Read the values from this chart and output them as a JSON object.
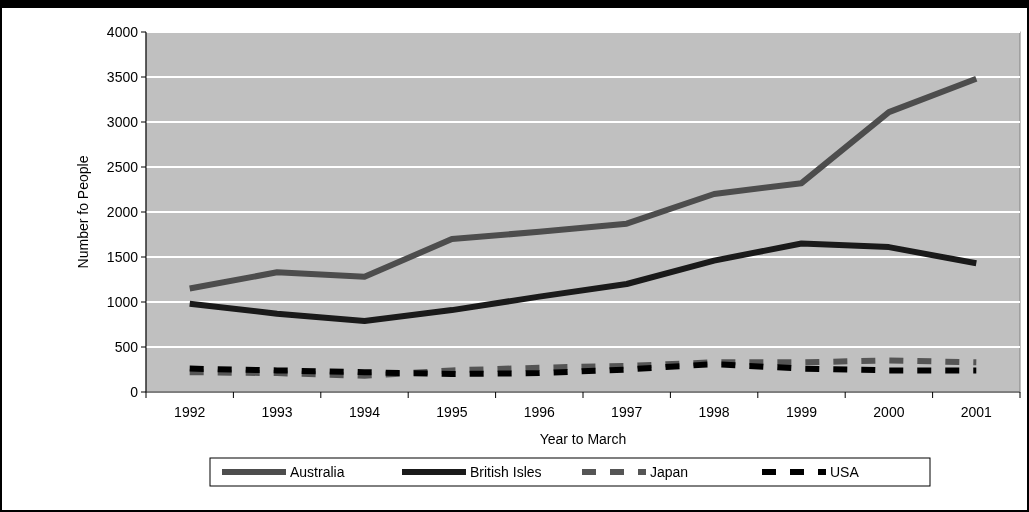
{
  "chart_data": {
    "type": "line",
    "xlabel": "Year to March",
    "ylabel": "Number fo People",
    "categories": [
      "1992",
      "1993",
      "1994",
      "1995",
      "1996",
      "1997",
      "1998",
      "1999",
      "2000",
      "2001"
    ],
    "series": [
      {
        "name": "Australia",
        "color": "#4d4d4d",
        "line_style": "solid",
        "values": [
          1150,
          1330,
          1280,
          1700,
          1780,
          1870,
          2200,
          2320,
          3110,
          3480
        ]
      },
      {
        "name": "British Isles",
        "color": "#1a1a1a",
        "line_style": "solid",
        "values": [
          980,
          870,
          790,
          910,
          1060,
          1200,
          1460,
          1650,
          1610,
          1430
        ]
      },
      {
        "name": "Japan",
        "color": "#555555",
        "line_style": "dashed",
        "values": [
          220,
          210,
          180,
          240,
          270,
          290,
          330,
          330,
          350,
          330
        ]
      },
      {
        "name": "USA",
        "color": "#000000",
        "line_style": "dashed",
        "values": [
          260,
          240,
          220,
          200,
          210,
          250,
          310,
          260,
          240,
          240
        ]
      }
    ],
    "ylim": [
      0,
      4000
    ],
    "yticks": [
      0,
      500,
      1000,
      1500,
      2000,
      2500,
      3000,
      3500,
      4000
    ],
    "grid": "y",
    "legend": "bottom"
  }
}
